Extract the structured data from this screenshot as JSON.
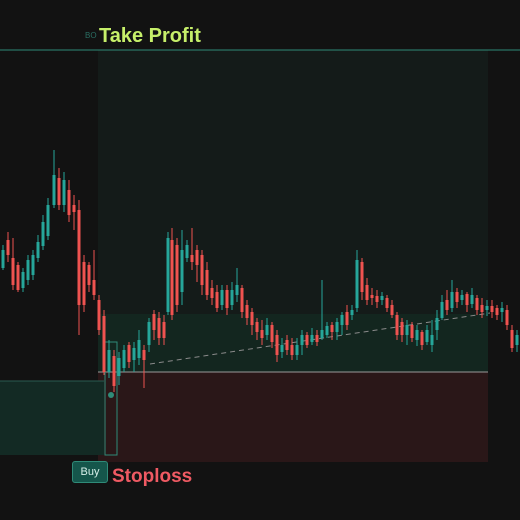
{
  "take_profit": {
    "label": "Take Profit",
    "small_label": "BO",
    "color": "#c6ef6a"
  },
  "stop_loss": {
    "label": "Stoploss",
    "color": "#ef5a63"
  },
  "buy": {
    "label": "Buy"
  },
  "colors": {
    "background": "#121212",
    "bull": "#26a69a",
    "bear": "#ef5350",
    "profit_zone": "#14241f",
    "loss_zone": "#2a1718"
  }
}
